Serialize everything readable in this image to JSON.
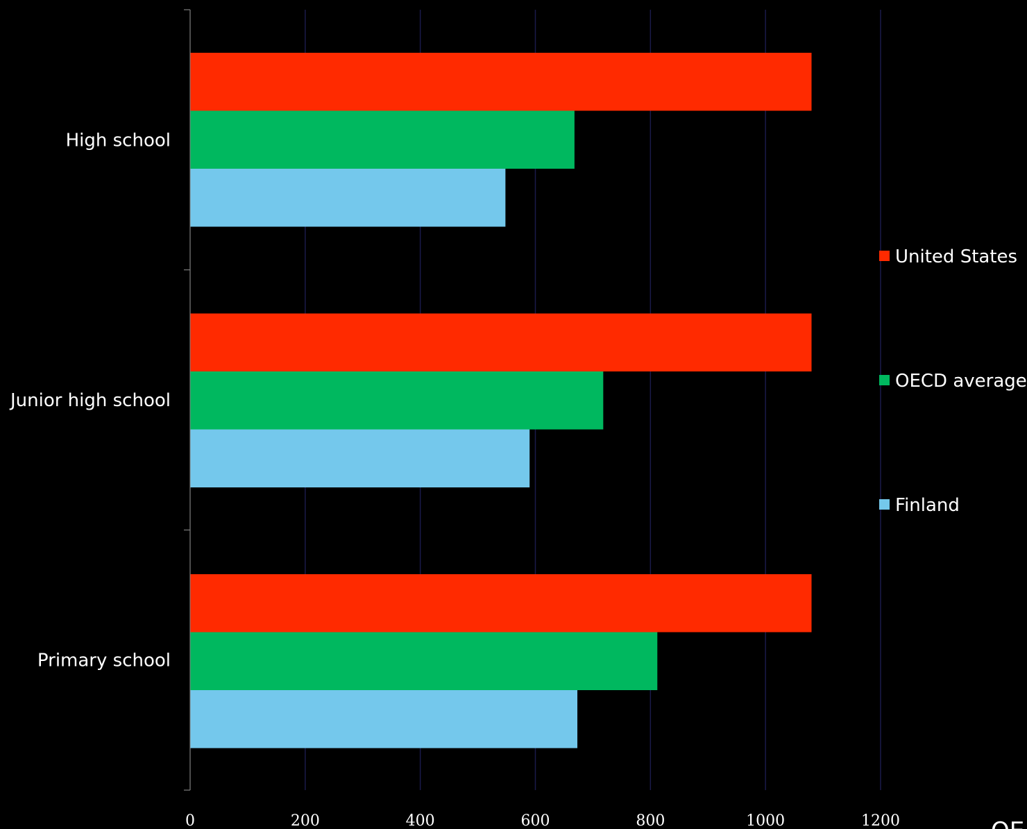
{
  "chart_data": {
    "type": "bar",
    "orientation": "horizontal",
    "categories": [
      "High school",
      "Junior high school",
      "Primary school"
    ],
    "series": [
      {
        "name": "United States",
        "color": "#ff2a00",
        "values": [
          1080,
          1080,
          1080
        ]
      },
      {
        "name": "OECD average",
        "color": "#00b85f",
        "values": [
          668,
          718,
          812
        ]
      },
      {
        "name": "Finland",
        "color": "#74c8ec",
        "values": [
          548,
          590,
          673
        ]
      }
    ],
    "xlim": [
      0,
      1200
    ],
    "xticks": [
      0,
      200,
      400,
      600,
      800,
      1000,
      1200
    ],
    "grid": true,
    "legend": "right",
    "source_text": "OE"
  }
}
